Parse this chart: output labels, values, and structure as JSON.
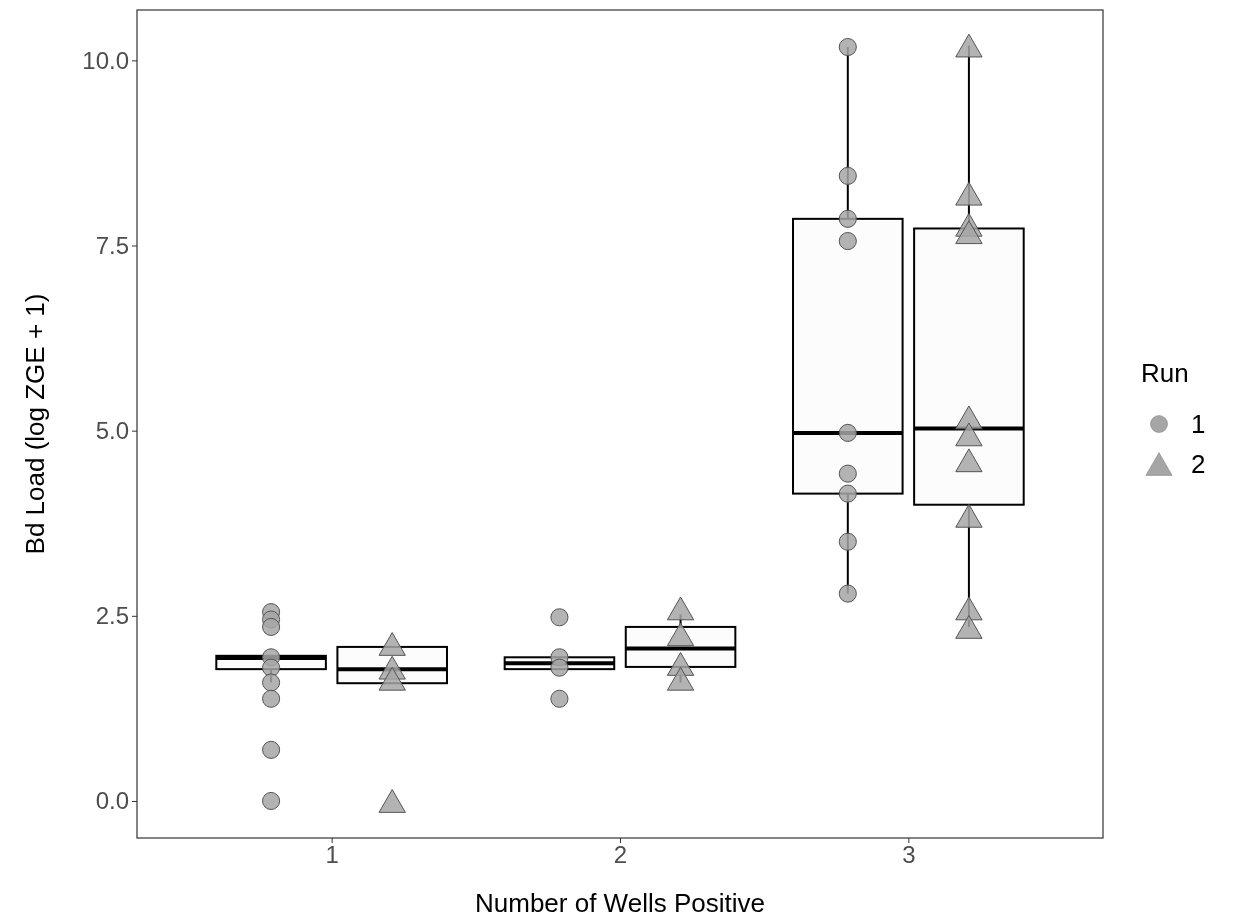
{
  "chart_data": {
    "type": "box",
    "xlabel": "Number of Wells Positive",
    "ylabel": "Bd Load (log ZGE + 1)",
    "legend_title": "Run",
    "legend": "right",
    "grid": false,
    "categories": [
      "1",
      "2",
      "3"
    ],
    "ylim": [
      -0.5,
      10.68
    ],
    "yticks": [
      {
        "value": 0,
        "label": "0.0"
      },
      {
        "value": 2.5,
        "label": "2.5"
      },
      {
        "value": 5,
        "label": "5.0"
      },
      {
        "value": 7.5,
        "label": "7.5"
      },
      {
        "value": 10,
        "label": "10.0"
      }
    ],
    "series": [
      {
        "color": "#000000",
        "boxes": [
          {
            "low": 1.6,
            "q1": 1.78,
            "median": 1.93,
            "q3": 1.96,
            "high": 1.96
          },
          {
            "low": 1.78,
            "q1": 1.78,
            "median": 1.86,
            "q3": 1.94,
            "high": 1.94
          },
          {
            "low": 2.8,
            "q1": 4.15,
            "median": 4.97,
            "q3": 7.86,
            "high": 10.18
          }
        ]
      },
      {
        "color": "#000000",
        "boxes": [
          {
            "low": 1.59,
            "q1": 1.59,
            "median": 1.78,
            "q3": 2.08,
            "high": 2.08
          },
          {
            "low": 1.6,
            "q1": 1.81,
            "median": 2.06,
            "q3": 2.35,
            "high": 2.52
          },
          {
            "low": 2.35,
            "q1": 4.0,
            "median": 5.03,
            "q3": 7.73,
            "high": 10.2
          }
        ]
      },
      {
        "type": "scatter",
        "name": "1",
        "marker": "circle",
        "color": "#a6a6a6",
        "x": [
          "1",
          "1",
          "1",
          "1",
          "1",
          "1",
          "1",
          "1",
          "1",
          "2",
          "2",
          "2",
          "2",
          "3",
          "3",
          "3",
          "3",
          "3",
          "3",
          "3",
          "3",
          "3"
        ],
        "values": [
          2.55,
          2.45,
          2.35,
          1.94,
          1.8,
          1.6,
          1.38,
          0.69,
          0.0,
          2.48,
          1.94,
          1.8,
          1.38,
          10.18,
          8.44,
          7.86,
          7.56,
          4.97,
          4.42,
          4.15,
          3.5,
          2.8
        ]
      },
      {
        "type": "scatter",
        "name": "2",
        "marker": "triangle",
        "color": "#a6a6a6",
        "x": [
          "1",
          "1",
          "1",
          "1",
          "2",
          "2",
          "2",
          "2",
          "3",
          "3",
          "3",
          "3",
          "3",
          "3",
          "3",
          "3",
          "3",
          "3"
        ],
        "values": [
          2.12,
          1.8,
          1.65,
          0.0,
          2.6,
          2.25,
          1.85,
          1.65,
          10.2,
          8.2,
          7.78,
          7.68,
          5.18,
          4.95,
          4.6,
          3.85,
          2.6,
          2.35
        ]
      }
    ]
  }
}
